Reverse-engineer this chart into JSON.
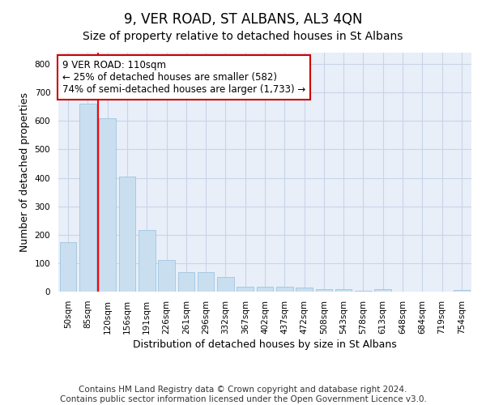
{
  "title": "9, VER ROAD, ST ALBANS, AL3 4QN",
  "subtitle": "Size of property relative to detached houses in St Albans",
  "xlabel": "Distribution of detached houses by size in St Albans",
  "ylabel": "Number of detached properties",
  "bar_color": "#c9dff0",
  "bar_edge_color": "#a0c4e0",
  "background_color": "#ffffff",
  "axes_bg_color": "#e8eff8",
  "grid_color": "#c8d4e8",
  "categories": [
    "50sqm",
    "85sqm",
    "120sqm",
    "156sqm",
    "191sqm",
    "226sqm",
    "261sqm",
    "296sqm",
    "332sqm",
    "367sqm",
    "402sqm",
    "437sqm",
    "472sqm",
    "508sqm",
    "543sqm",
    "578sqm",
    "613sqm",
    "648sqm",
    "684sqm",
    "719sqm",
    "754sqm"
  ],
  "values": [
    175,
    660,
    610,
    403,
    215,
    110,
    67,
    67,
    50,
    18,
    17,
    17,
    13,
    8,
    8,
    2,
    8,
    0,
    0,
    0,
    5
  ],
  "ylim": [
    0,
    840
  ],
  "yticks": [
    0,
    100,
    200,
    300,
    400,
    500,
    600,
    700,
    800
  ],
  "property_line_x": 1.5,
  "annotation_text": "9 VER ROAD: 110sqm\n← 25% of detached houses are smaller (582)\n74% of semi-detached houses are larger (1,733) →",
  "annotation_box_color": "#ffffff",
  "annotation_box_edge_color": "#cc0000",
  "footer_text": "Contains HM Land Registry data © Crown copyright and database right 2024.\nContains public sector information licensed under the Open Government Licence v3.0.",
  "title_fontsize": 12,
  "subtitle_fontsize": 10,
  "axis_label_fontsize": 9,
  "tick_fontsize": 7.5,
  "annotation_fontsize": 8.5,
  "footer_fontsize": 7.5
}
